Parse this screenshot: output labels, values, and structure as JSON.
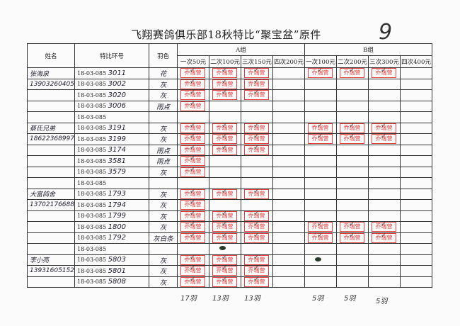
{
  "title": "飞翔赛鸽俱乐部18秋特比“聚宝盆”原件",
  "page_number": "9",
  "headers": {
    "name": "姓名",
    "ring": "特比环号",
    "color": "羽色",
    "group_a": "A组",
    "group_b": "B组",
    "a_cols": [
      "一次50元",
      "二次100元",
      "三次150元",
      "四次200元"
    ],
    "b_cols": [
      "一次100元",
      "二次200元",
      "三次300元",
      "四次400元"
    ]
  },
  "stamp_text": "乔瑞营",
  "stamp_color": "#dd2222",
  "ring_prefix": "18-03-085",
  "rows": [
    {
      "name": "张海泉",
      "ring": "3011",
      "color": "花",
      "stamps": [
        1,
        1,
        1,
        0,
        1,
        1,
        1,
        0
      ]
    },
    {
      "name": "13903260405",
      "ring": "3002",
      "color": "灰",
      "stamps": [
        1,
        1,
        1,
        0,
        0,
        0,
        0,
        0
      ]
    },
    {
      "name": "",
      "ring": "3020",
      "color": "灰",
      "stamps": [
        1,
        1,
        1,
        0,
        0,
        0,
        0,
        0
      ]
    },
    {
      "name": "",
      "ring": "3006",
      "color": "雨点",
      "stamps": [
        1,
        0,
        0,
        0,
        0,
        0,
        0,
        0
      ]
    },
    {
      "name": "",
      "ring": "",
      "color": "",
      "stamps": [
        0,
        0,
        0,
        0,
        0,
        0,
        0,
        0
      ]
    },
    {
      "name": "蔡氏兄弟",
      "ring": "3191",
      "color": "灰",
      "stamps": [
        1,
        1,
        1,
        0,
        1,
        1,
        1,
        0
      ]
    },
    {
      "name": "18622368997",
      "ring": "3199",
      "color": "灰",
      "stamps": [
        1,
        1,
        1,
        0,
        1,
        1,
        1,
        0
      ]
    },
    {
      "name": "",
      "ring": "3174",
      "color": "雨点",
      "stamps": [
        1,
        1,
        1,
        0,
        0,
        0,
        0,
        0
      ]
    },
    {
      "name": "",
      "ring": "3581",
      "color": "雨点",
      "stamps": [
        1,
        0,
        0,
        0,
        0,
        0,
        0,
        0
      ]
    },
    {
      "name": "",
      "ring": "3579",
      "color": "灰",
      "stamps": [
        1,
        0,
        0,
        0,
        0,
        0,
        0,
        0
      ]
    },
    {
      "name": "",
      "ring": "",
      "color": "",
      "stamps": [
        0,
        0,
        0,
        0,
        0,
        0,
        0,
        0
      ]
    },
    {
      "name": "大富鸽舍",
      "ring": "1793",
      "color": "灰",
      "stamps": [
        1,
        1,
        1,
        0,
        0,
        0,
        0,
        0
      ]
    },
    {
      "name": "13702176688",
      "ring": "1794",
      "color": "灰",
      "stamps": [
        1,
        0,
        0,
        0,
        0,
        0,
        0,
        0
      ]
    },
    {
      "name": "",
      "ring": "1799",
      "color": "灰",
      "stamps": [
        1,
        1,
        1,
        0,
        0,
        0,
        0,
        0
      ]
    },
    {
      "name": "",
      "ring": "1800",
      "color": "灰",
      "stamps": [
        1,
        1,
        1,
        0,
        1,
        1,
        1,
        0
      ]
    },
    {
      "name": "",
      "ring": "1792",
      "color": "灰白条",
      "stamps": [
        1,
        1,
        1,
        0,
        1,
        1,
        1,
        0
      ]
    },
    {
      "name": "",
      "ring": "",
      "color": "",
      "stamps": [
        0,
        2,
        0,
        0,
        0,
        0,
        0,
        0
      ]
    },
    {
      "name": "李小亮",
      "ring": "5803",
      "color": "灰",
      "stamps": [
        1,
        1,
        1,
        0,
        2,
        0,
        0,
        0
      ]
    },
    {
      "name": "13931605152",
      "ring": "5801",
      "color": "灰",
      "stamps": [
        1,
        1,
        1,
        0,
        0,
        0,
        0,
        0
      ]
    },
    {
      "name": "",
      "ring": "5808",
      "color": "灰",
      "stamps": [
        1,
        1,
        1,
        0,
        0,
        0,
        0,
        0
      ]
    }
  ],
  "totals": [
    "17羽",
    "13羽",
    "13羽",
    "",
    "5羽",
    "5羽",
    "5羽",
    ""
  ]
}
